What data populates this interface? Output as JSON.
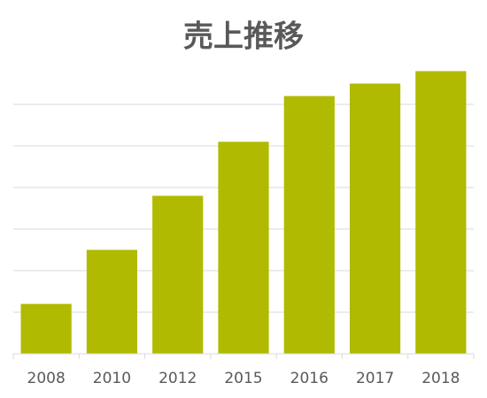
{
  "chart_data": {
    "type": "bar",
    "title": "売上推移",
    "categories": [
      "2008",
      "2010",
      "2012",
      "2015",
      "2016",
      "2017",
      "2018"
    ],
    "values": [
      1.2,
      2.5,
      3.8,
      5.1,
      6.2,
      6.5,
      6.8
    ],
    "color": "#b0ba00",
    "ylim": [
      0,
      7
    ],
    "yticks": [
      0,
      1,
      2,
      3,
      4,
      5,
      6
    ],
    "grid": true
  }
}
